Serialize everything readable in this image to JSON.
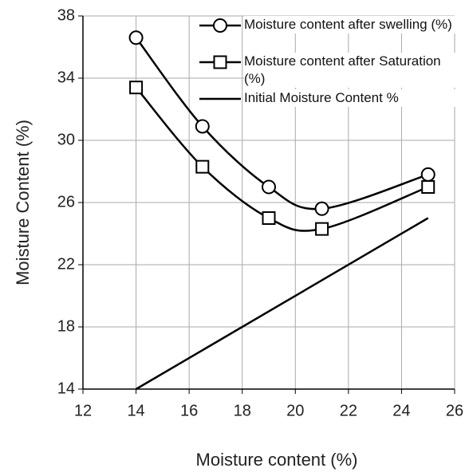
{
  "chart_data": {
    "type": "line",
    "x_label": "Moisture content (%)",
    "y_label": "Moisture Content (%)",
    "xlim": [
      12,
      26
    ],
    "xticks": [
      12,
      14,
      16,
      18,
      20,
      22,
      24,
      26
    ],
    "ylim": [
      14,
      38
    ],
    "yticks": [
      14,
      18,
      22,
      26,
      30,
      34,
      38
    ],
    "grid": true,
    "legend": "upper right",
    "series": [
      {
        "name": "Moisture content after swelling (%)",
        "color": "#000000",
        "marker": "circle",
        "smooth": true,
        "x": [
          14,
          16.5,
          19,
          21,
          25
        ],
        "values": [
          36.6,
          30.9,
          27.0,
          25.6,
          27.8
        ]
      },
      {
        "name": "Moisture content after Saturation (%)",
        "color": "#000000",
        "marker": "square",
        "smooth": true,
        "x": [
          14,
          16.5,
          19,
          21,
          25
        ],
        "values": [
          33.4,
          28.3,
          25.0,
          24.3,
          27.0
        ]
      },
      {
        "name": "Initial Moisture Content %",
        "color": "#000000",
        "marker": "none",
        "smooth": false,
        "x": [
          14,
          25
        ],
        "values": [
          14,
          25
        ]
      }
    ]
  }
}
